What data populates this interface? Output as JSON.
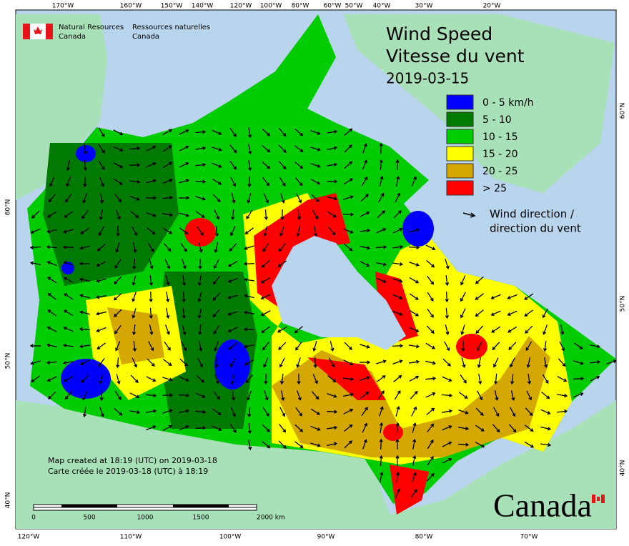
{
  "agency": {
    "en": [
      "Natural Resources",
      "Canada"
    ],
    "fr": [
      "Ressources naturelles",
      "Canada"
    ]
  },
  "title": [
    "Wind Speed",
    "Vitesse du vent"
  ],
  "date": "2019-03-15",
  "legend": [
    {
      "label": "0 - 5 km/h",
      "color": "#0000ff"
    },
    {
      "label": "5 - 10",
      "color": "#007a00"
    },
    {
      "label": "10 - 15",
      "color": "#00cc00"
    },
    {
      "label": "15 - 20",
      "color": "#ffff00"
    },
    {
      "label": "20 - 25",
      "color": "#d4a800"
    },
    {
      "label": "> 25",
      "color": "#ff0000"
    }
  ],
  "direction_legend": [
    "Wind direction /",
    "direction du vent"
  ],
  "top_longitudes": [
    "170°W",
    "160°W",
    "150°W",
    "140°W",
    "120°W",
    "100°W",
    "80°W",
    "60°W",
    "50°W",
    "40°W",
    "30°W",
    "20°W"
  ],
  "bottom_longitudes": [
    "120°W",
    "110°W",
    "100°W",
    "90°W",
    "80°W",
    "70°W"
  ],
  "left_latitudes": [
    "60°N",
    "50°N",
    "40°N"
  ],
  "right_latitudes": [
    "60°N",
    "50°N",
    "40°N"
  ],
  "credits": [
    "Map created at 18:19 (UTC) on 2019-03-18",
    "Carte créée le 2019-03-18 (UTC) à 18:19"
  ],
  "scale": [
    "0",
    "500",
    "1000",
    "1500",
    "2000 km"
  ],
  "wordmark": "Canada"
}
